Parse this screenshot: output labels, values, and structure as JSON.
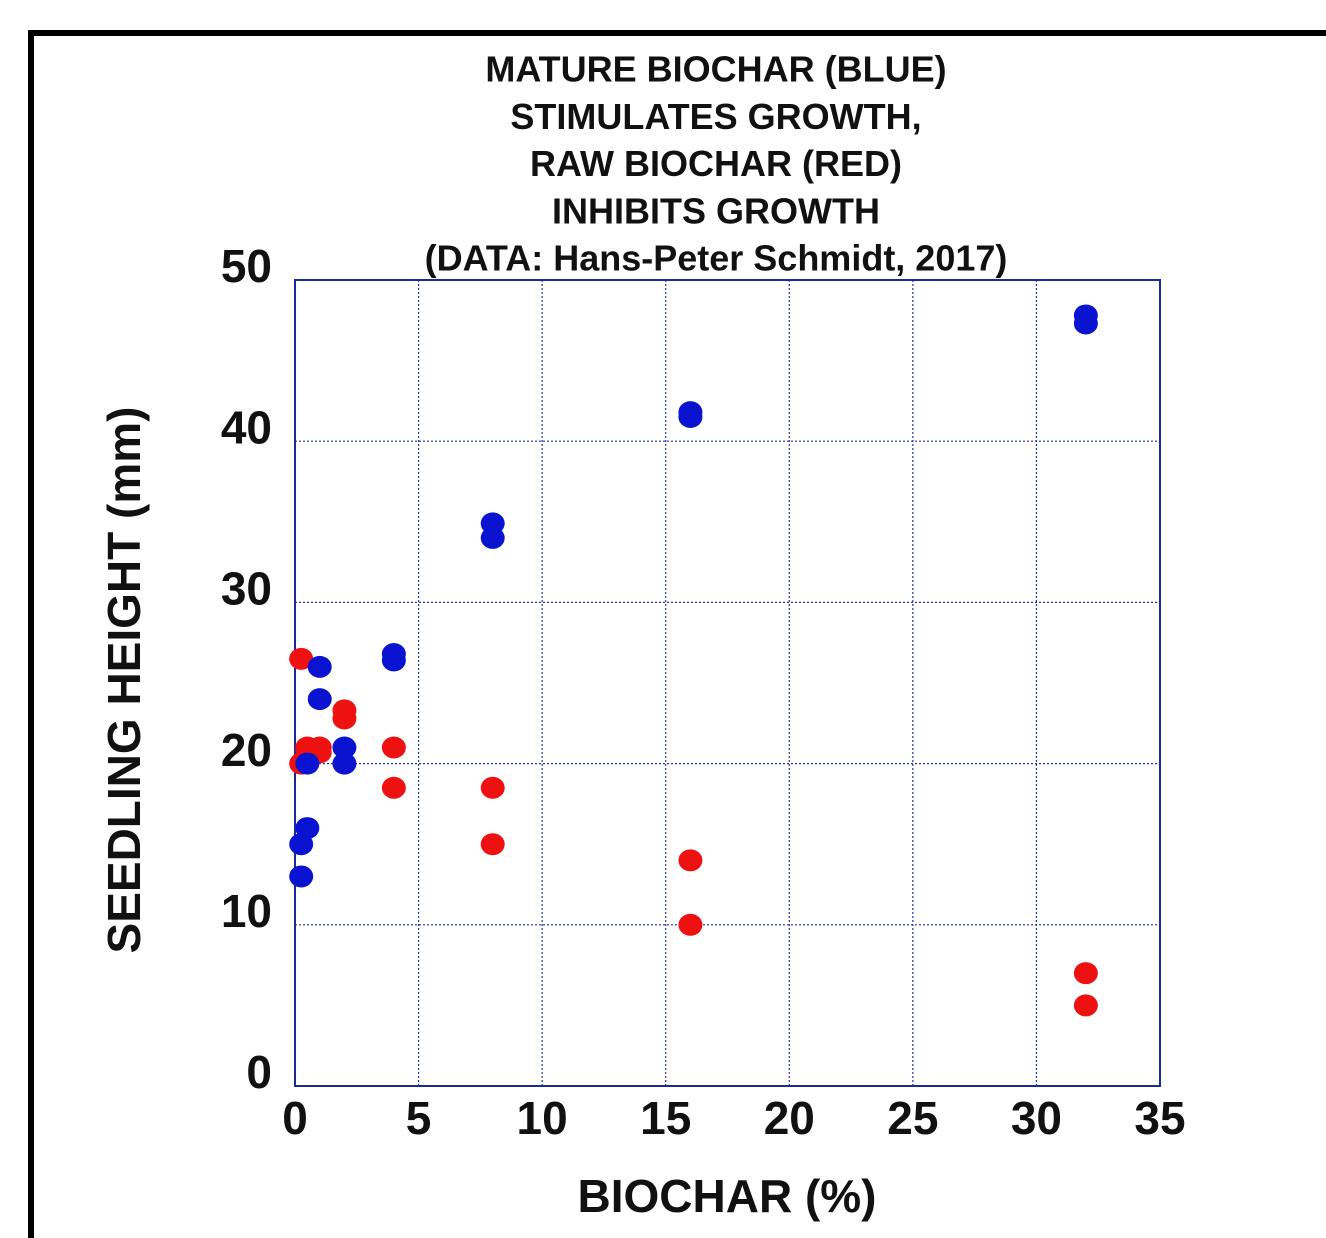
{
  "chart_data": {
    "type": "scatter",
    "title": [
      "MATURE BIOCHAR (BLUE)",
      "STIMULATES GROWTH,",
      "RAW BIOCHAR (RED)",
      "INHIBITS GROWTH",
      "(DATA: Hans-Peter Schmidt, 2017)"
    ],
    "x_label": "BIOCHAR (%)",
    "y_label": "SEEDLING HEIGHT (mm)",
    "xlim": [
      0,
      35
    ],
    "xticks": [
      0,
      5,
      10,
      15,
      20,
      25,
      30,
      35
    ],
    "ylim": [
      0,
      50
    ],
    "yticks": [
      0,
      10,
      20,
      30,
      40,
      50
    ],
    "grid": true,
    "series": [
      {
        "color": "#ee1111",
        "x": [
          0.25,
          0.25,
          0.5,
          0.5,
          1,
          1,
          2,
          2,
          4,
          4,
          8,
          8,
          16,
          16,
          32,
          32
        ],
        "values": [
          26.5,
          20.0,
          21.0,
          20.8,
          21.0,
          20.7,
          23.3,
          22.8,
          21.0,
          18.5,
          18.5,
          15.0,
          14.0,
          10.0,
          7.0,
          5.0
        ]
      },
      {
        "color": "#0a14d0",
        "x": [
          0.25,
          0.25,
          0.5,
          0.5,
          1,
          1,
          2,
          2,
          4,
          4,
          8,
          8,
          16,
          16,
          32,
          32
        ],
        "values": [
          15.0,
          13.0,
          20.0,
          16.0,
          26.0,
          24.0,
          21.0,
          20.0,
          26.8,
          26.4,
          34.9,
          34.0,
          41.8,
          41.5,
          47.8,
          47.3
        ]
      }
    ]
  }
}
